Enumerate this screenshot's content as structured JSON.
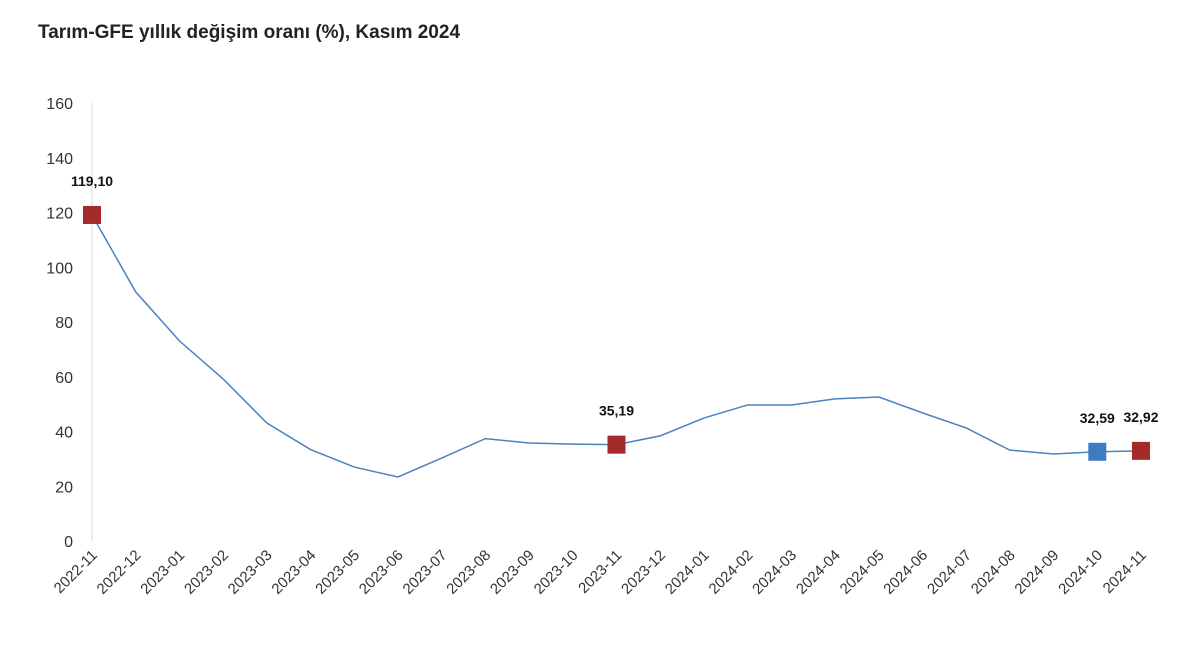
{
  "chart_data": {
    "type": "line",
    "title": "Tarım-GFE yıllık değişim oranı (%), Kasım 2024",
    "categories": [
      "2022-11",
      "2022-12",
      "2023-01",
      "2023-02",
      "2023-03",
      "2023-04",
      "2023-05",
      "2023-06",
      "2023-07",
      "2023-08",
      "2023-09",
      "2023-10",
      "2023-11",
      "2023-12",
      "2024-01",
      "2024-02",
      "2024-03",
      "2024-04",
      "2024-05",
      "2024-06",
      "2024-07",
      "2024-08",
      "2024-09",
      "2024-10",
      "2024-11"
    ],
    "values": [
      119.1,
      91.0,
      73.1,
      59.2,
      43.1,
      33.4,
      27.0,
      23.4,
      30.3,
      37.4,
      35.8,
      35.4,
      35.19,
      38.4,
      44.9,
      49.7,
      49.7,
      51.9,
      52.6,
      46.8,
      41.3,
      33.2,
      31.8,
      32.59,
      32.92
    ],
    "highlights": [
      {
        "index": 0,
        "label": "119,10",
        "color": "#a52a2a"
      },
      {
        "index": 12,
        "label": "35,19",
        "color": "#a52a2a"
      },
      {
        "index": 23,
        "label": "32,59",
        "color": "#3e7bbf"
      },
      {
        "index": 24,
        "label": "32,92",
        "color": "#a52a2a"
      }
    ],
    "line_color": "#4a82c0",
    "ylim": [
      0,
      160
    ],
    "yticks": [
      0,
      20,
      40,
      60,
      80,
      100,
      120,
      140,
      160
    ],
    "grid": false,
    "xlabel": "",
    "ylabel": ""
  }
}
